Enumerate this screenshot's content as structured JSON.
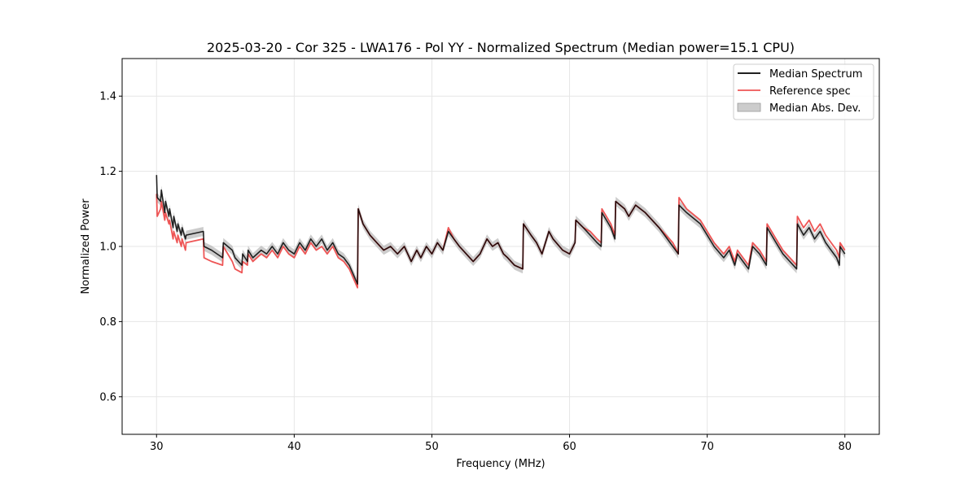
{
  "chart_data": {
    "type": "line",
    "title": "2025-03-20 - Cor 325 - LWA176 - Pol YY - Normalized Spectrum (Median power=15.1 CPU)",
    "xlabel": "Frequency (MHz)",
    "ylabel": "Normalized Power",
    "xlim": [
      27.5,
      82.5
    ],
    "ylim": [
      0.5,
      1.5
    ],
    "xticks": [
      30,
      40,
      50,
      60,
      70,
      80
    ],
    "yticks": [
      0.6,
      0.8,
      1.0,
      1.2,
      1.4
    ],
    "xtick_labels": [
      "30",
      "40",
      "50",
      "60",
      "70",
      "80"
    ],
    "ytick_labels": [
      "0.6",
      "0.8",
      "1.0",
      "1.2",
      "1.4"
    ],
    "grid": true,
    "legend_position": "top-right",
    "series": [
      {
        "name": "Median Spectrum",
        "color": "#000000",
        "x": [
          30.0,
          30.05,
          30.3,
          30.35,
          30.6,
          30.65,
          30.9,
          30.95,
          31.2,
          31.25,
          31.5,
          31.55,
          31.8,
          31.85,
          32.1,
          32.15,
          33.4,
          33.45,
          34.0,
          34.8,
          34.85,
          35.5,
          35.7,
          36.2,
          36.25,
          36.6,
          36.65,
          37.0,
          37.6,
          38.0,
          38.4,
          38.8,
          39.2,
          39.6,
          40.0,
          40.4,
          40.8,
          41.2,
          41.6,
          42.0,
          42.4,
          42.8,
          43.2,
          43.6,
          44.0,
          44.6,
          44.65,
          45.0,
          45.5,
          46.0,
          46.5,
          47.0,
          47.5,
          48.0,
          48.5,
          48.9,
          49.2,
          49.6,
          50.0,
          50.4,
          50.8,
          51.2,
          51.6,
          52.0,
          52.5,
          53.0,
          53.5,
          54.0,
          54.4,
          54.8,
          55.2,
          55.5,
          56.0,
          56.6,
          56.65,
          57.2,
          57.6,
          58.0,
          58.5,
          58.8,
          59.5,
          60.0,
          60.4,
          60.45,
          61.0,
          61.5,
          62.0,
          62.3,
          62.35,
          63.0,
          63.3,
          63.35,
          64.0,
          64.3,
          64.8,
          65.5,
          66.5,
          67.5,
          67.9,
          67.95,
          68.5,
          69.5,
          70.5,
          71.2,
          71.6,
          72.0,
          72.2,
          72.6,
          73.0,
          73.3,
          73.8,
          74.3,
          74.35,
          75.0,
          75.5,
          76.0,
          76.5,
          76.55,
          77.0,
          77.4,
          77.8,
          78.2,
          78.6,
          79.0,
          79.4,
          79.6,
          79.65,
          80.0
        ],
        "values": [
          1.19,
          1.13,
          1.12,
          1.15,
          1.09,
          1.12,
          1.08,
          1.1,
          1.05,
          1.08,
          1.04,
          1.06,
          1.03,
          1.05,
          1.02,
          1.03,
          1.04,
          1.0,
          0.99,
          0.97,
          1.01,
          0.99,
          0.97,
          0.95,
          0.98,
          0.96,
          0.99,
          0.97,
          0.99,
          0.98,
          1.0,
          0.98,
          1.01,
          0.99,
          0.98,
          1.01,
          0.99,
          1.02,
          1.0,
          1.02,
          0.99,
          1.01,
          0.98,
          0.97,
          0.95,
          0.9,
          1.1,
          1.06,
          1.03,
          1.01,
          0.99,
          1.0,
          0.98,
          1.0,
          0.96,
          0.99,
          0.97,
          1.0,
          0.98,
          1.01,
          0.99,
          1.04,
          1.02,
          1.0,
          0.98,
          0.96,
          0.98,
          1.02,
          1.0,
          1.01,
          0.98,
          0.97,
          0.95,
          0.94,
          1.06,
          1.03,
          1.01,
          0.98,
          1.04,
          1.02,
          0.99,
          0.98,
          1.01,
          1.07,
          1.05,
          1.03,
          1.01,
          1.0,
          1.09,
          1.05,
          1.02,
          1.12,
          1.1,
          1.08,
          1.11,
          1.09,
          1.05,
          1.0,
          0.98,
          1.11,
          1.09,
          1.06,
          1.0,
          0.97,
          0.99,
          0.95,
          0.98,
          0.96,
          0.94,
          1.0,
          0.98,
          0.95,
          1.05,
          1.01,
          0.98,
          0.96,
          0.94,
          1.06,
          1.03,
          1.05,
          1.02,
          1.04,
          1.01,
          0.99,
          0.97,
          0.95,
          1.0,
          0.98
        ]
      },
      {
        "name": "Reference spec",
        "color": "#ee5555",
        "x": [
          30.0,
          30.05,
          30.3,
          30.35,
          30.6,
          30.65,
          30.9,
          30.95,
          31.2,
          31.25,
          31.5,
          31.55,
          31.8,
          31.85,
          32.1,
          32.15,
          33.4,
          33.45,
          34.0,
          34.8,
          34.85,
          35.5,
          35.7,
          36.2,
          36.25,
          36.6,
          36.65,
          37.0,
          37.6,
          38.0,
          38.4,
          38.8,
          39.2,
          39.6,
          40.0,
          40.4,
          40.8,
          41.2,
          41.6,
          42.0,
          42.4,
          42.8,
          43.2,
          43.6,
          44.0,
          44.6,
          44.65,
          45.0,
          45.5,
          46.0,
          46.5,
          47.0,
          47.5,
          48.0,
          48.5,
          48.9,
          49.2,
          49.6,
          50.0,
          50.4,
          50.8,
          51.2,
          51.6,
          52.0,
          52.5,
          53.0,
          53.5,
          54.0,
          54.4,
          54.8,
          55.2,
          55.5,
          56.0,
          56.6,
          56.65,
          57.2,
          57.6,
          58.0,
          58.5,
          58.8,
          59.5,
          60.0,
          60.4,
          60.45,
          61.0,
          61.5,
          62.0,
          62.3,
          62.35,
          63.0,
          63.3,
          63.35,
          64.0,
          64.3,
          64.8,
          65.5,
          66.5,
          67.5,
          67.9,
          67.95,
          68.5,
          69.5,
          70.5,
          71.2,
          71.6,
          72.0,
          72.2,
          72.6,
          73.0,
          73.3,
          73.8,
          74.3,
          74.35,
          75.0,
          75.5,
          76.0,
          76.5,
          76.55,
          77.0,
          77.4,
          77.8,
          78.2,
          78.6,
          79.0,
          79.4,
          79.6,
          79.65,
          80.0
        ],
        "values": [
          1.14,
          1.08,
          1.1,
          1.12,
          1.07,
          1.09,
          1.06,
          1.07,
          1.02,
          1.04,
          1.01,
          1.03,
          1.0,
          1.02,
          0.99,
          1.01,
          1.02,
          0.97,
          0.96,
          0.95,
          1.0,
          0.96,
          0.94,
          0.93,
          0.96,
          0.95,
          0.98,
          0.96,
          0.98,
          0.97,
          0.99,
          0.97,
          1.0,
          0.98,
          0.97,
          1.0,
          0.98,
          1.01,
          0.99,
          1.0,
          0.98,
          1.0,
          0.97,
          0.96,
          0.94,
          0.89,
          1.1,
          1.06,
          1.03,
          1.01,
          0.99,
          1.0,
          0.98,
          1.0,
          0.96,
          0.99,
          0.97,
          1.0,
          0.98,
          1.01,
          0.99,
          1.05,
          1.02,
          1.0,
          0.98,
          0.96,
          0.98,
          1.02,
          1.0,
          1.01,
          0.98,
          0.97,
          0.95,
          0.94,
          1.06,
          1.03,
          1.01,
          0.98,
          1.04,
          1.02,
          0.99,
          0.98,
          1.01,
          1.07,
          1.05,
          1.04,
          1.02,
          1.01,
          1.1,
          1.06,
          1.03,
          1.12,
          1.1,
          1.08,
          1.11,
          1.09,
          1.05,
          1.01,
          0.98,
          1.13,
          1.1,
          1.07,
          1.01,
          0.98,
          1.0,
          0.96,
          0.99,
          0.97,
          0.95,
          1.01,
          0.99,
          0.96,
          1.06,
          1.02,
          0.99,
          0.97,
          0.95,
          1.08,
          1.05,
          1.07,
          1.04,
          1.06,
          1.03,
          1.01,
          0.99,
          0.97,
          1.01,
          0.99
        ]
      }
    ],
    "band": {
      "name": "Median Abs. Dev.",
      "color": "#999999",
      "half_width": 0.012
    }
  }
}
